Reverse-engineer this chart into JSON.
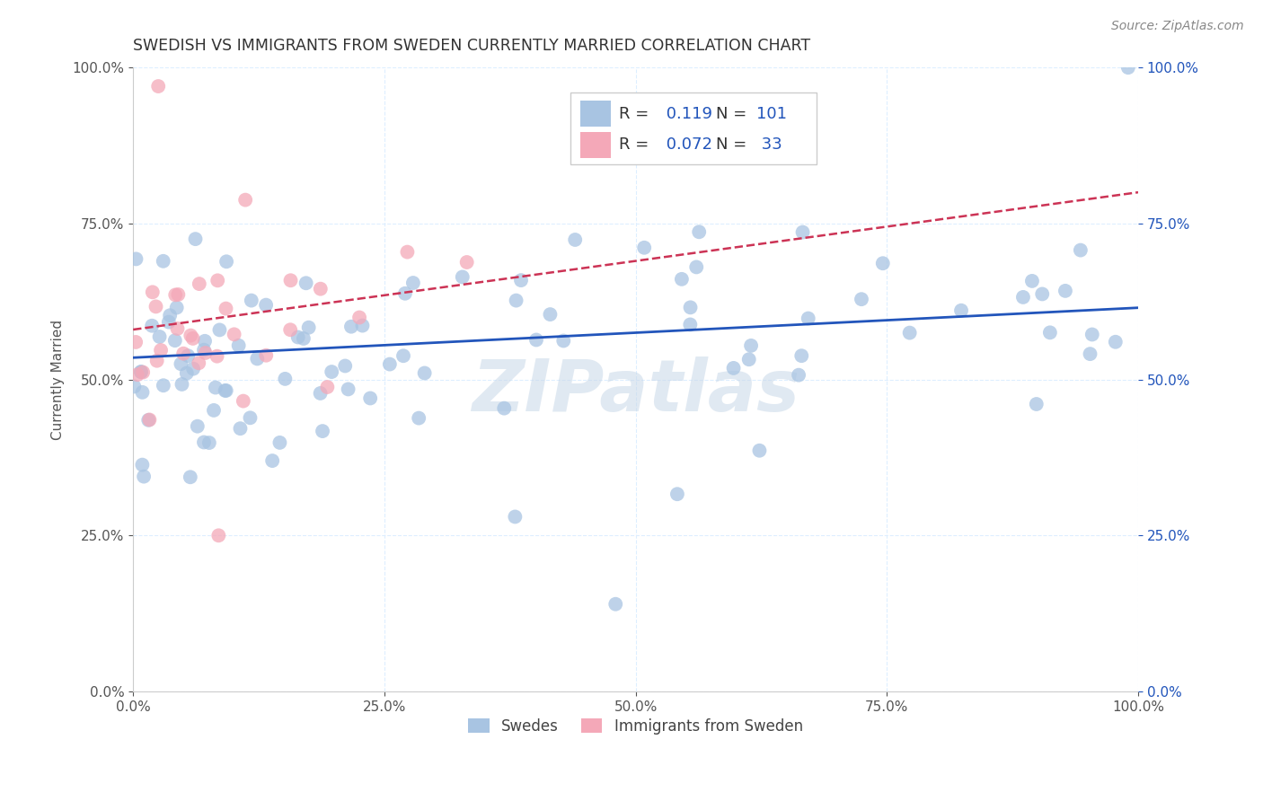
{
  "title": "SWEDISH VS IMMIGRANTS FROM SWEDEN CURRENTLY MARRIED CORRELATION CHART",
  "source_text": "Source: ZipAtlas.com",
  "ylabel": "Currently Married",
  "watermark": "ZIPatlas",
  "R_blue": 0.119,
  "N_blue": 101,
  "R_pink": 0.072,
  "N_pink": 33,
  "legend_labels": [
    "Swedes",
    "Immigrants from Sweden"
  ],
  "blue_color": "#a8c4e2",
  "pink_color": "#f4a8b8",
  "blue_line_color": "#2255bb",
  "pink_line_color": "#cc3355",
  "blue_line_solid": true,
  "pink_line_dashed": true,
  "legend_text_color": "#2255bb",
  "title_color": "#333333",
  "background_color": "#ffffff",
  "grid_color": "#ddeeff",
  "grid_linestyle": "--",
  "xlim": [
    0.0,
    1.0
  ],
  "ylim": [
    0.0,
    1.0
  ],
  "xticks": [
    0.0,
    0.25,
    0.5,
    0.75,
    1.0
  ],
  "yticks": [
    0.0,
    0.25,
    0.5,
    0.75,
    1.0
  ],
  "blue_slope": 0.08,
  "blue_intercept": 0.535,
  "pink_slope": 0.22,
  "pink_intercept": 0.58,
  "marker_size": 130,
  "marker_alpha": 0.75
}
